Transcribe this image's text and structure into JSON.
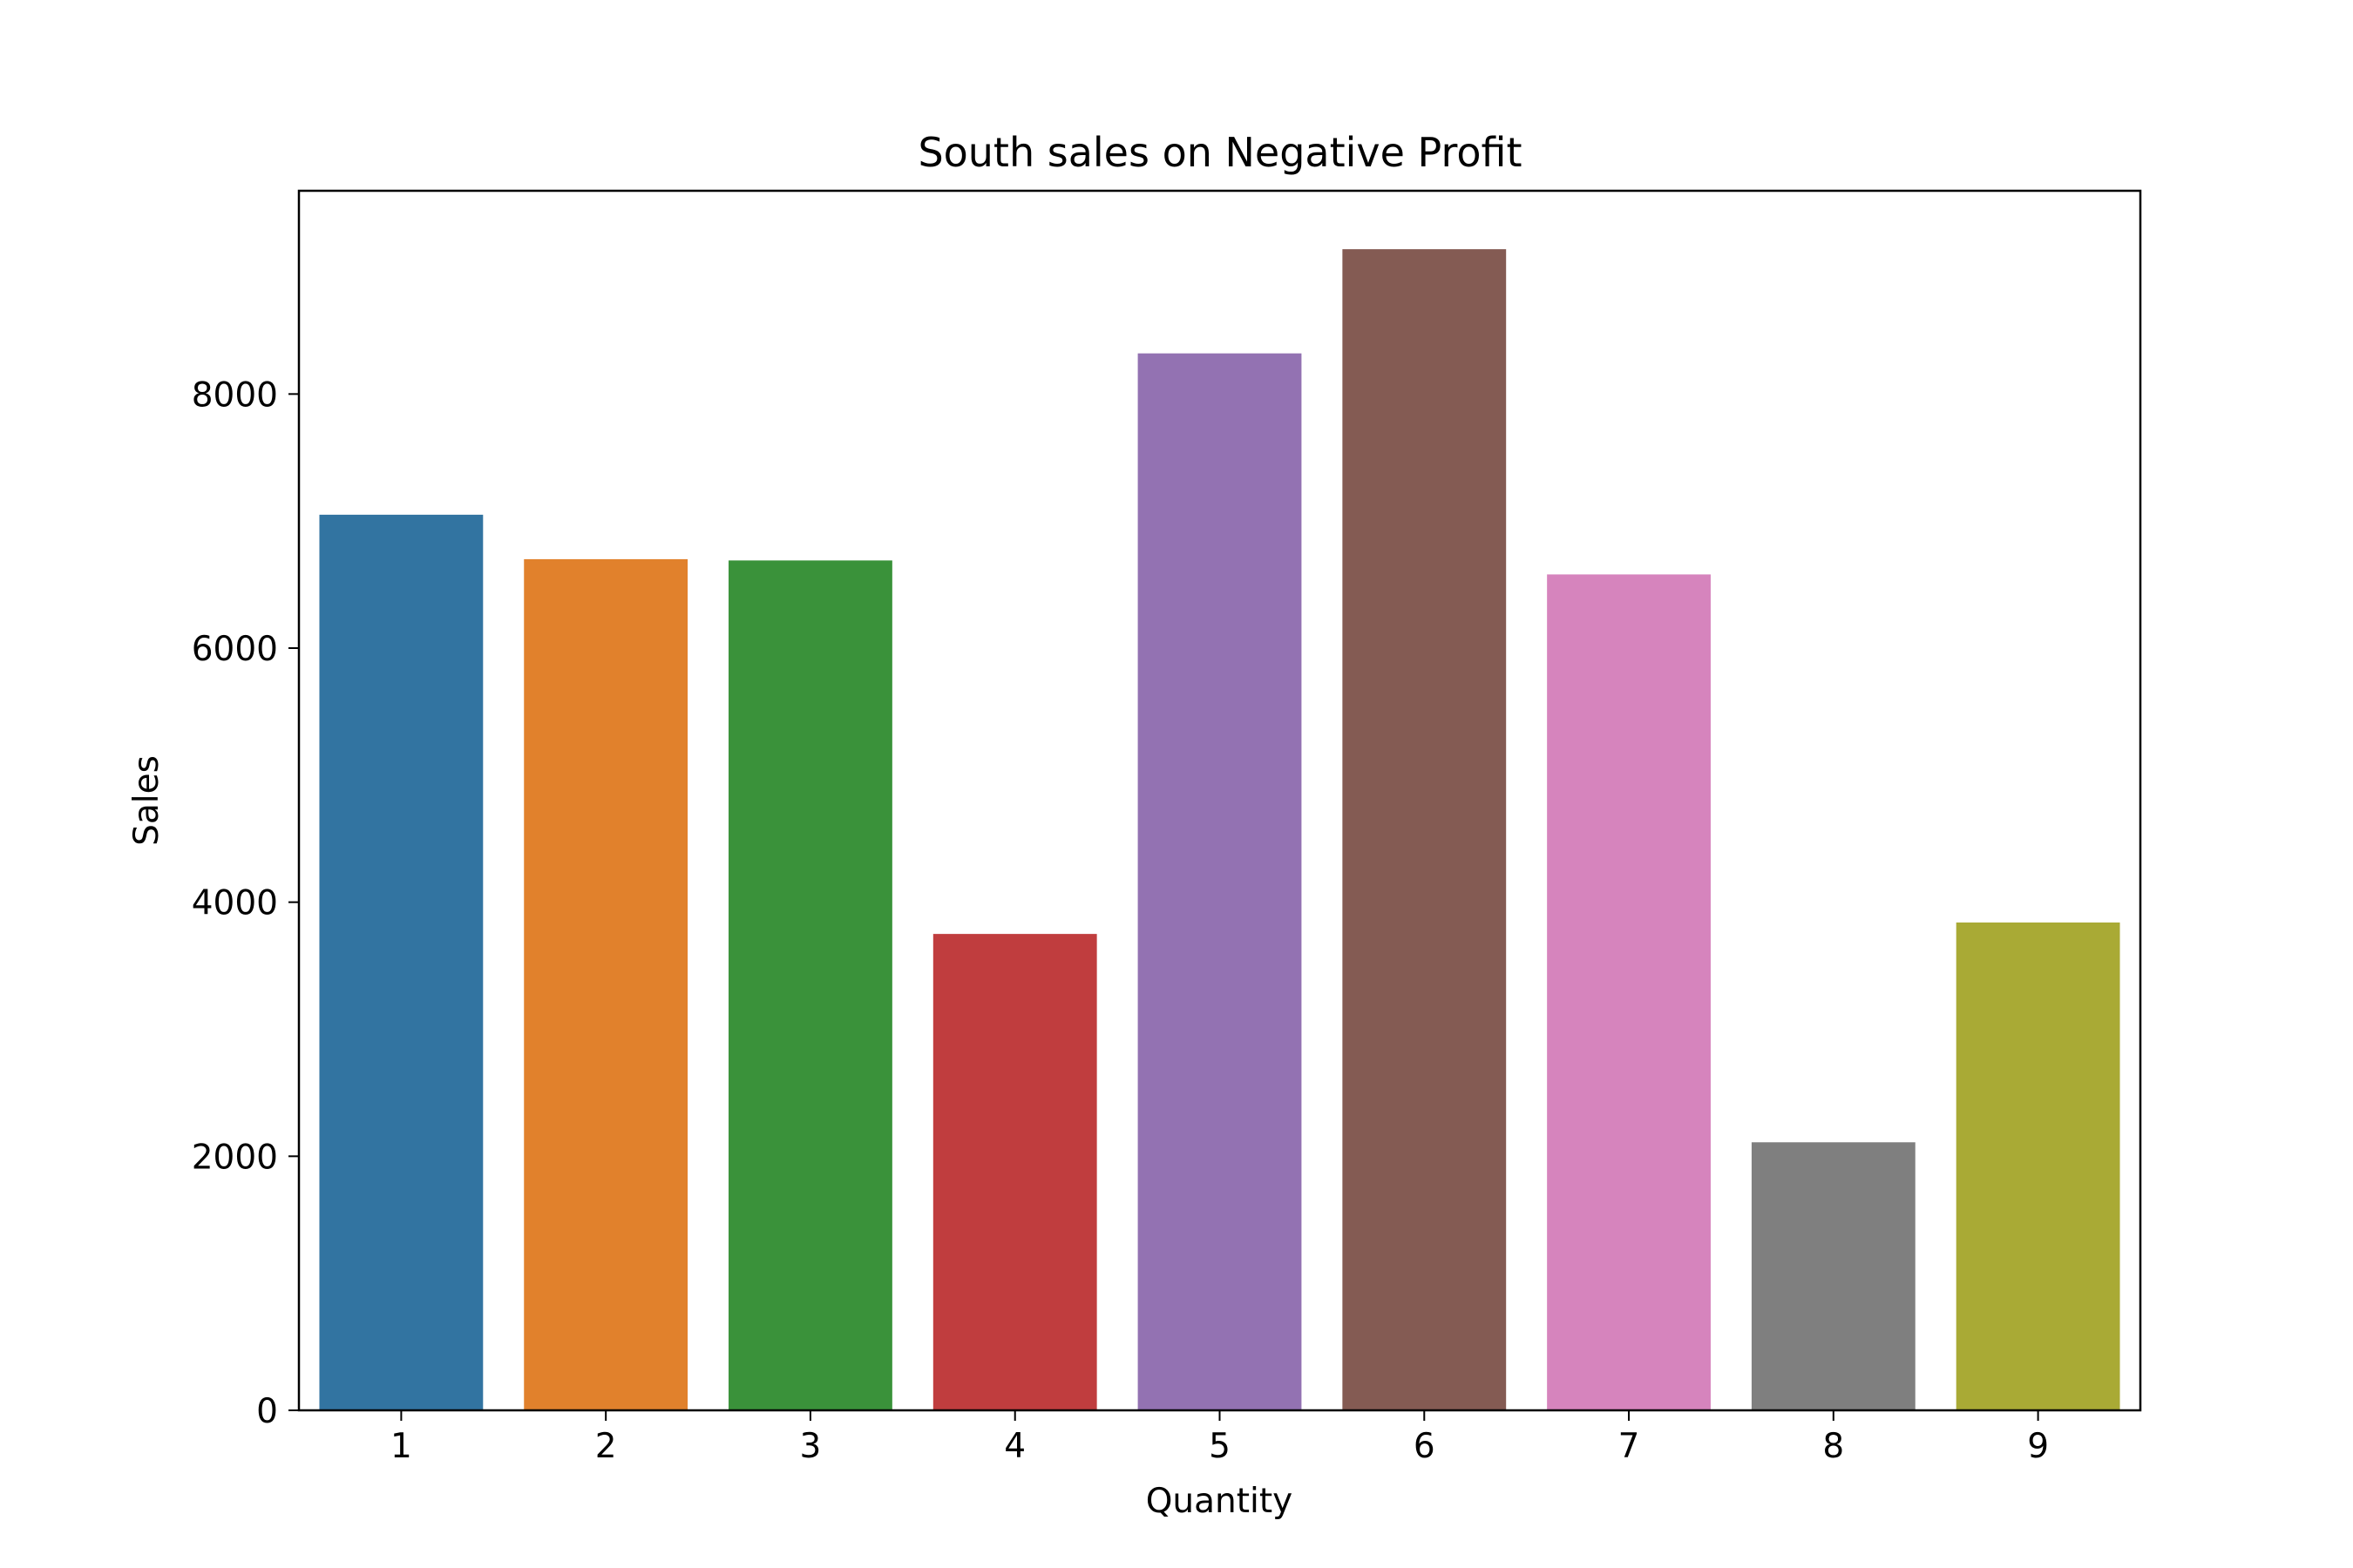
{
  "chart_data": {
    "type": "bar",
    "title": "South sales on Negative Profit",
    "xlabel": "Quantity",
    "ylabel": "Sales",
    "categories": [
      "1",
      "2",
      "3",
      "4",
      "5",
      "6",
      "7",
      "8",
      "9"
    ],
    "values": [
      7050,
      6700,
      6690,
      3750,
      8320,
      9140,
      6580,
      2110,
      3840
    ],
    "colors": [
      "#3274a1",
      "#e1812c",
      "#3a923a",
      "#c03d3e",
      "#9372b2",
      "#845b53",
      "#d684bd",
      "#7f7f7f",
      "#a9aa35"
    ],
    "ylim": [
      0,
      9600
    ],
    "yticks": [
      0,
      2000,
      4000,
      6000,
      8000
    ],
    "grid": false,
    "legend": "none"
  }
}
